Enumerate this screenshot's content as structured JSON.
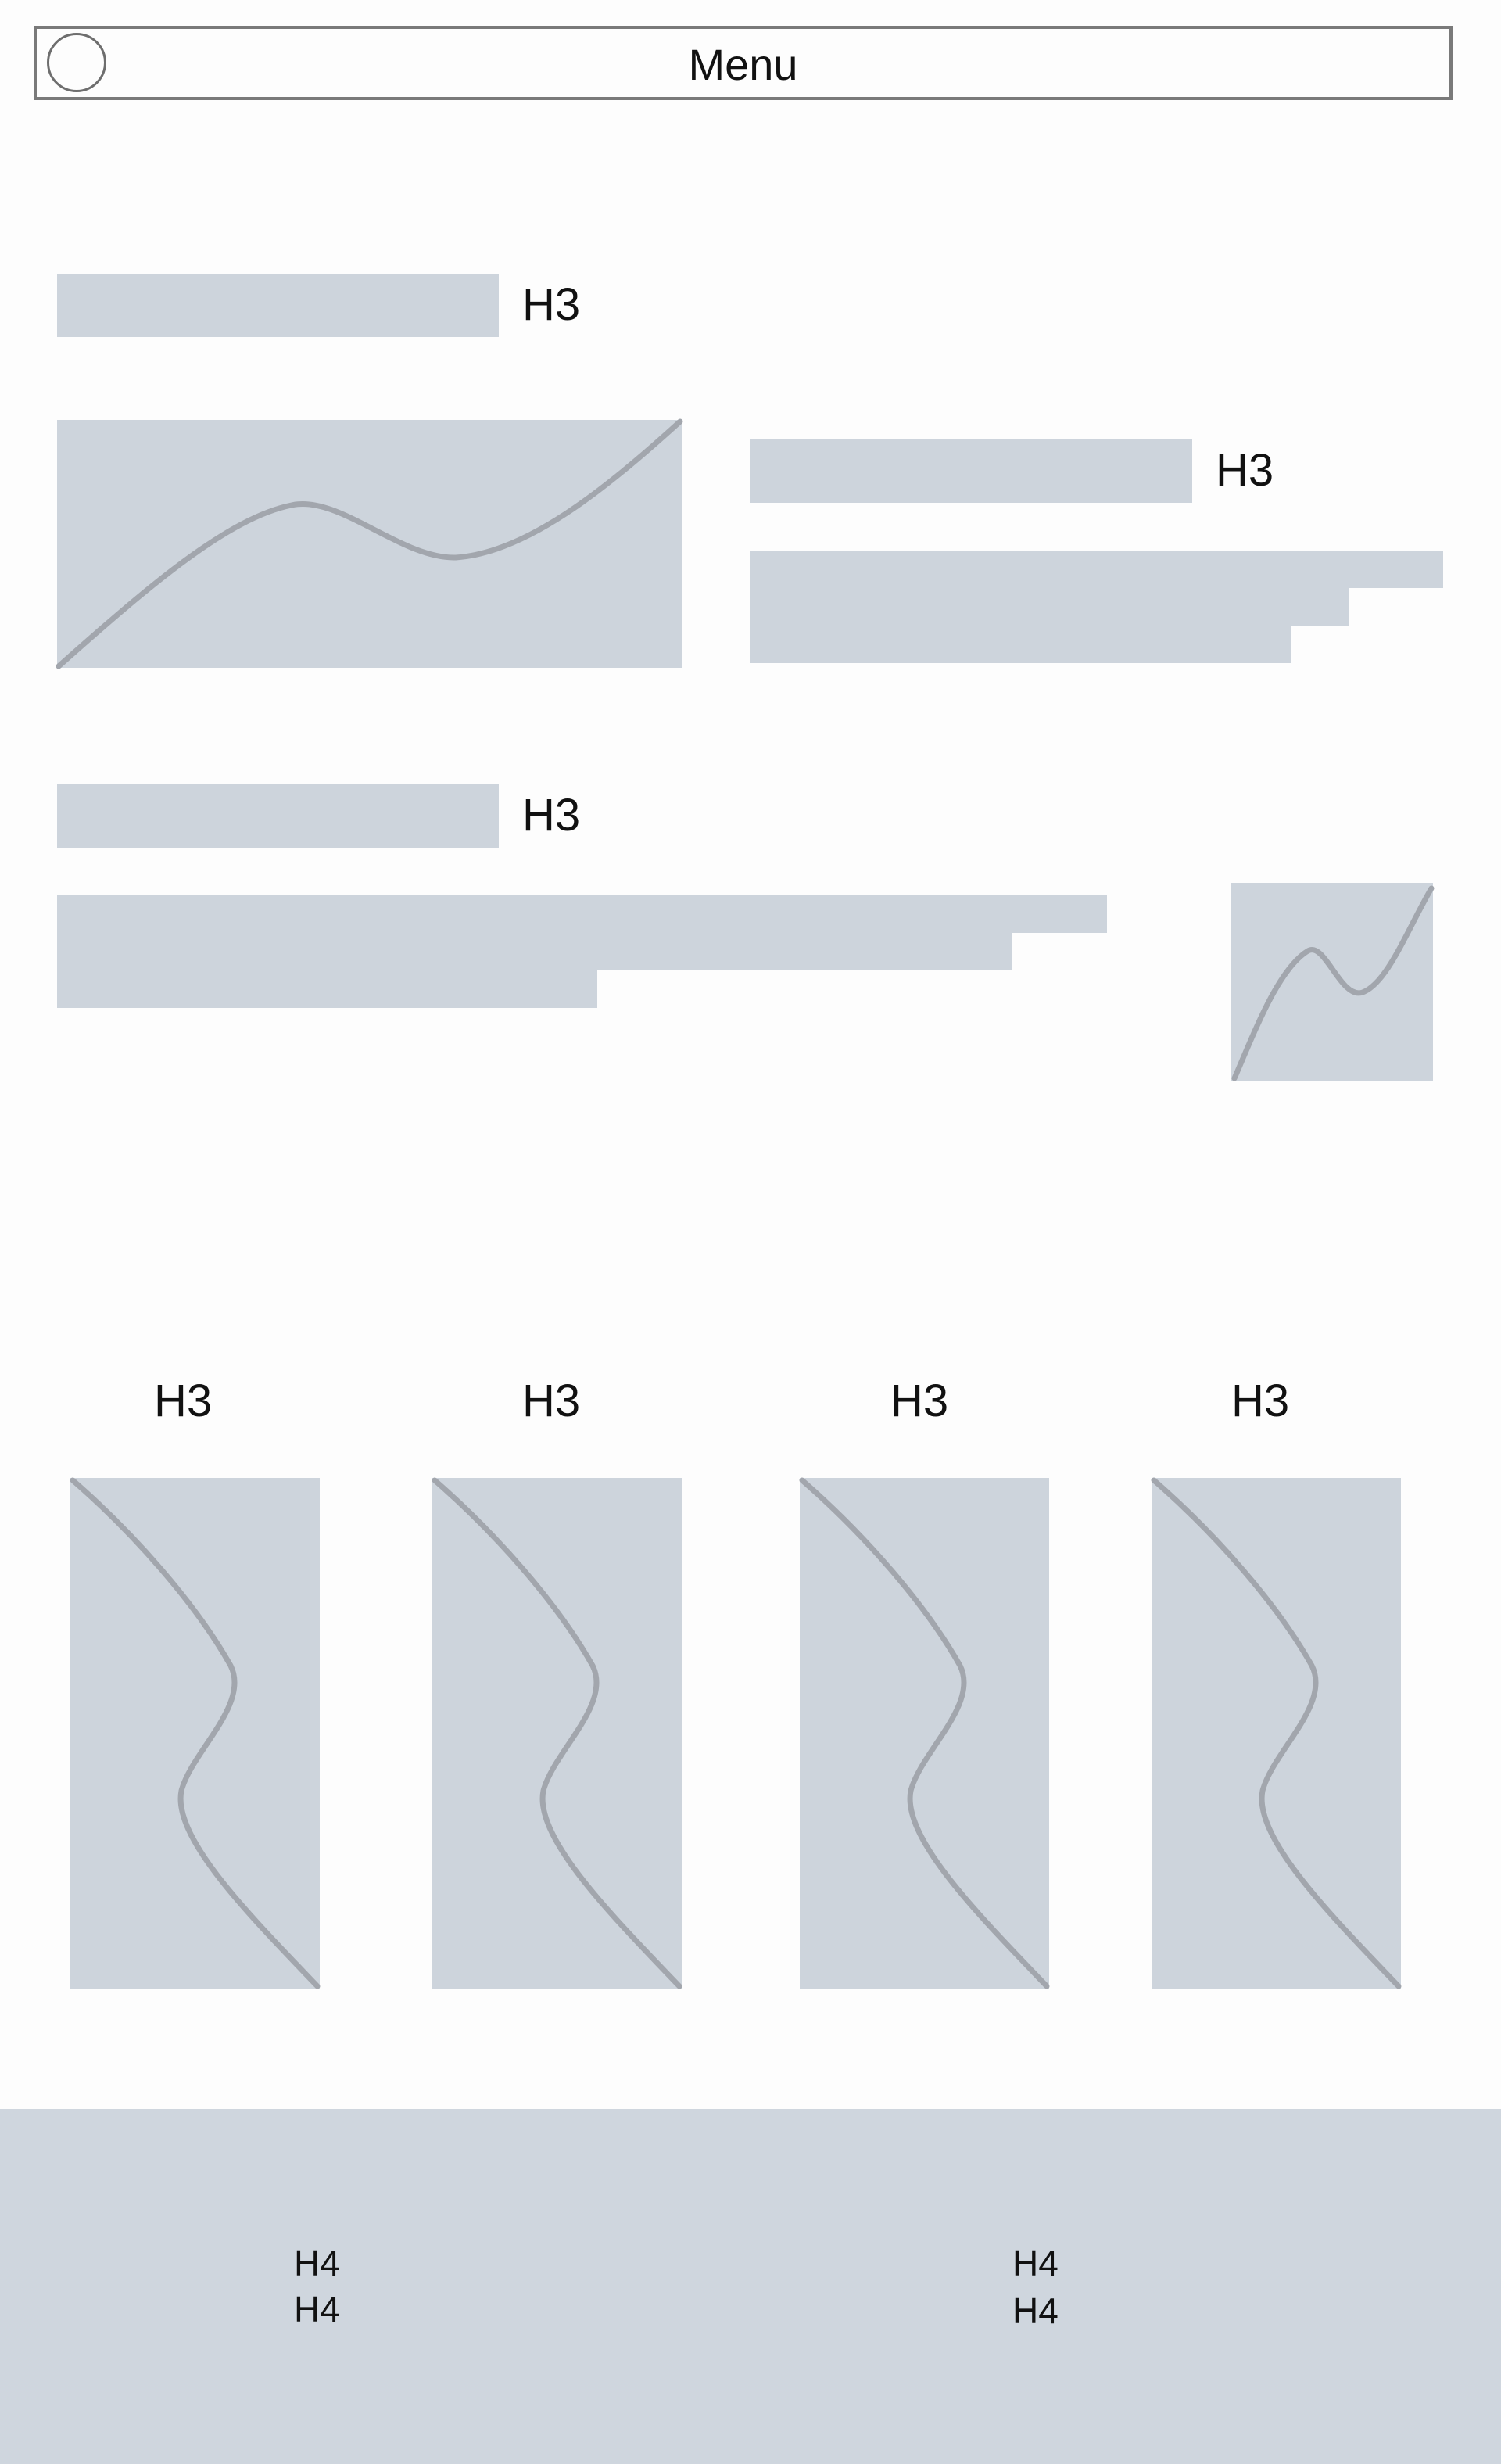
{
  "header": {
    "menu_label": "Menu"
  },
  "section1": {
    "heading": "H3",
    "card_heading": "H3"
  },
  "section2": {
    "heading": "H3"
  },
  "columns": [
    {
      "heading": "H3"
    },
    {
      "heading": "H3"
    },
    {
      "heading": "H3"
    },
    {
      "heading": "H3"
    }
  ],
  "footer": {
    "left": {
      "line1": "H4",
      "line2": "H4"
    },
    "right": {
      "line1": "H4",
      "line2": "H4"
    }
  },
  "colors": {
    "placeholder": "#cdd4dc",
    "curve": "#a2a6ad",
    "border": "#7a7a7a",
    "footer": "#cfd6de"
  }
}
